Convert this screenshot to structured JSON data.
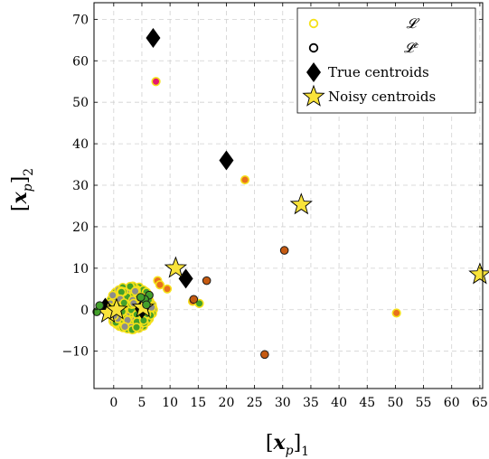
{
  "chart_data": {
    "type": "scatter",
    "xlabel": "[x_p]_1",
    "ylabel": "[x_p]_2",
    "xlim": [
      -3.5,
      65.5
    ],
    "ylim": [
      -19,
      74
    ],
    "xticks": [
      0,
      5,
      10,
      15,
      20,
      25,
      30,
      35,
      40,
      45,
      50,
      55,
      60,
      65
    ],
    "yticks": [
      -10,
      0,
      10,
      20,
      30,
      40,
      50,
      60,
      70
    ],
    "grid": true,
    "legend_position": "top-right",
    "legend": [
      {
        "label": "𝓛",
        "marker": "circle-open",
        "color": "#f5e11a"
      },
      {
        "label": "𝓛ᶜ",
        "marker": "circle-open",
        "color": "#000000"
      },
      {
        "label": "True centroids",
        "marker": "diamond",
        "color": "#000000"
      },
      {
        "label": "Noisy centroids",
        "marker": "star",
        "color": "#f9e33a"
      }
    ],
    "colors": {
      "L_edge": "#f5e11a",
      "Lc_edge": "#1a1a1a",
      "green": "#43a02b",
      "gray": "#8c8c8c",
      "orange": "#e8711d",
      "dark_orange": "#c55a11",
      "pink": "#e6186e",
      "star": "#f9e33a"
    },
    "series": [
      {
        "name": "True centroids",
        "marker": "diamond",
        "points": [
          [
            7.0,
            65.5
          ],
          [
            20.0,
            36.0
          ],
          [
            12.8,
            7.5
          ],
          [
            -1.5,
            0.5
          ],
          [
            5.0,
            0.2
          ]
        ]
      },
      {
        "name": "Noisy centroids",
        "marker": "star",
        "points": [
          [
            33.3,
            25.3
          ],
          [
            65.0,
            8.5
          ],
          [
            11.0,
            10.0
          ],
          [
            -1.0,
            -0.8
          ],
          [
            0.5,
            0.0
          ],
          [
            5.2,
            0.5
          ]
        ]
      },
      {
        "marker": "circle-L",
        "points": [
          [
            7.5,
            55.0,
            "pink"
          ],
          [
            23.3,
            31.3,
            "orange"
          ],
          [
            50.2,
            -0.8,
            "orange"
          ],
          [
            7.8,
            7.0,
            "orange"
          ],
          [
            9.5,
            5.0,
            "orange"
          ],
          [
            14.0,
            2.0,
            "orange"
          ],
          [
            15.2,
            1.5,
            "green"
          ],
          [
            8.2,
            6.0,
            "orange"
          ]
        ]
      },
      {
        "marker": "circle-Lc",
        "points": [
          [
            30.3,
            14.3,
            "dark_orange"
          ],
          [
            26.8,
            -10.8,
            "dark_orange"
          ],
          [
            16.5,
            7.0,
            "dark_orange"
          ],
          [
            14.2,
            2.5,
            "dark_orange"
          ],
          [
            6.3,
            3.5,
            "green"
          ],
          [
            -3.0,
            -0.5,
            "green"
          ],
          [
            5.5,
            2.5,
            "green"
          ],
          [
            5.8,
            1.2,
            "green"
          ],
          [
            -2.5,
            1.0,
            "green"
          ],
          [
            4.8,
            3.0,
            "green"
          ]
        ]
      }
    ],
    "cluster": {
      "center": [
        3.0,
        0.5
      ],
      "count": 260,
      "x_spread": 3.4,
      "y_spread": 3.2
    }
  }
}
